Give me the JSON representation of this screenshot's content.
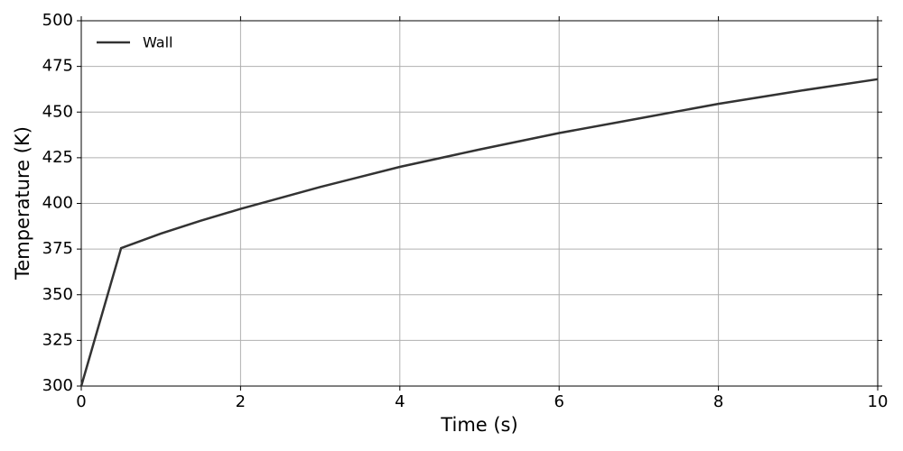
{
  "chart_data": {
    "type": "line",
    "xlabel": "Time (s)",
    "ylabel": "Temperature (K)",
    "x": [
      0,
      0.5,
      1,
      1.5,
      2,
      3,
      4,
      5,
      6,
      7,
      8,
      9,
      10
    ],
    "series": [
      {
        "name": "Wall",
        "color": "#333333",
        "values": [
          300,
          375.5,
          383.5,
          390.5,
          397,
          409,
          420,
          429.5,
          438.5,
          446.5,
          454.5,
          461.5,
          468
        ]
      }
    ],
    "xlim": [
      0,
      10
    ],
    "xticks": [
      0,
      2,
      4,
      6,
      8,
      10
    ],
    "ylim": [
      300,
      500
    ],
    "yticks": [
      300,
      325,
      350,
      375,
      400,
      425,
      450,
      475,
      500
    ],
    "grid": true,
    "legend": "upper-left"
  }
}
